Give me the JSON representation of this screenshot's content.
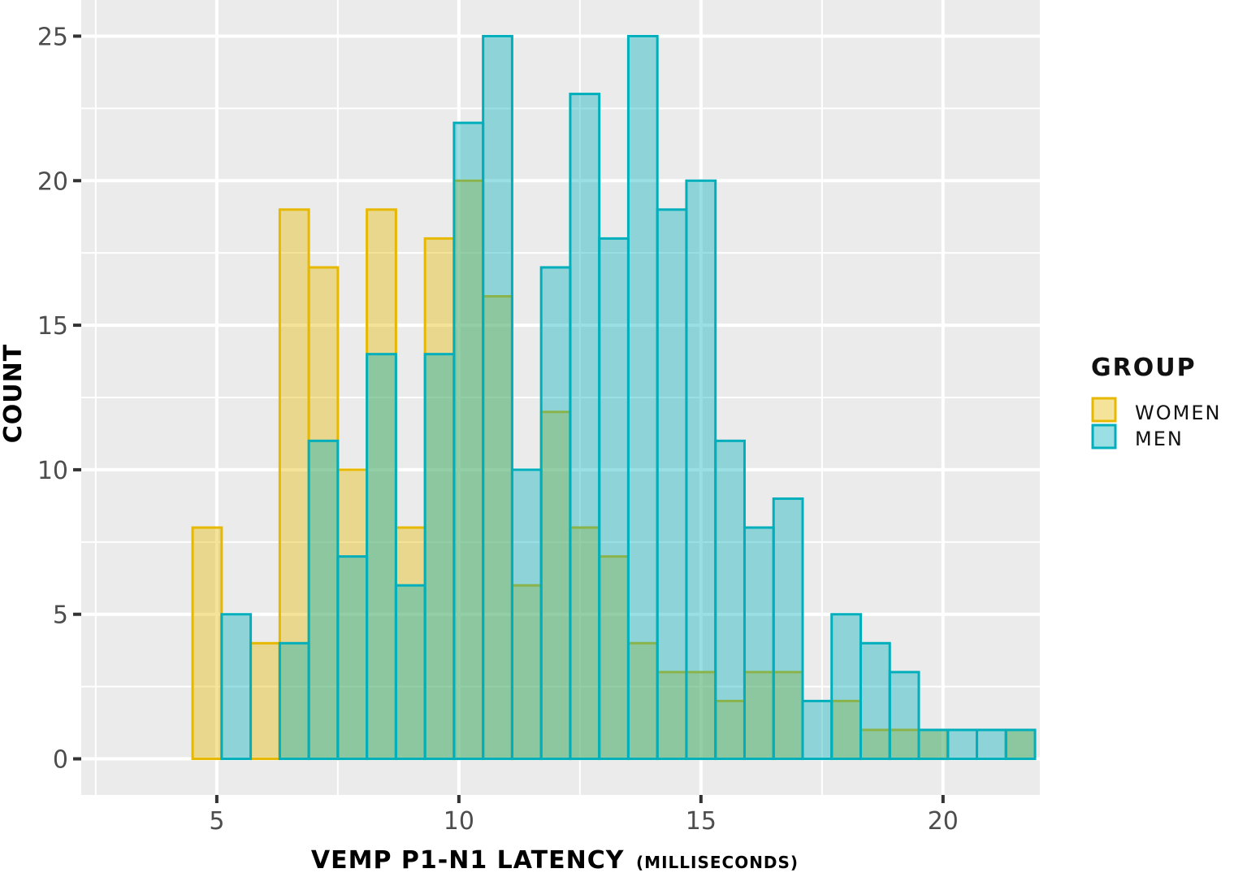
{
  "chart_data": {
    "type": "bar",
    "xlabel_main": "VEMP P1-N1 LATENCY",
    "xlabel_unit": "(MILLISECONDS)",
    "ylabel": "COUNT",
    "xlim": [
      2.2,
      22.0
    ],
    "ylim": [
      -1.25,
      26.25
    ],
    "xticks": [
      5,
      10,
      15,
      20
    ],
    "yticks": [
      0,
      5,
      10,
      15,
      20,
      25
    ],
    "bin_width": 0.6,
    "bins_start": 4.5,
    "legend_position": "right",
    "legend_title": "GROUP",
    "grid": true,
    "series": [
      {
        "name": "WOMEN",
        "fill": "#E7B800",
        "values": [
          8,
          0,
          4,
          19,
          17,
          10,
          19,
          8,
          18,
          20,
          16,
          6,
          12,
          8,
          7,
          4,
          3,
          3,
          2,
          3,
          3,
          0,
          2,
          1,
          1,
          1,
          0,
          0,
          1
        ]
      },
      {
        "name": "MEN",
        "fill": "#00AFBB",
        "values": [
          0,
          5,
          0,
          4,
          11,
          7,
          14,
          6,
          14,
          22,
          25,
          10,
          17,
          23,
          18,
          25,
          19,
          20,
          11,
          8,
          9,
          2,
          5,
          4,
          3,
          1,
          1,
          1,
          1
        ]
      }
    ]
  }
}
